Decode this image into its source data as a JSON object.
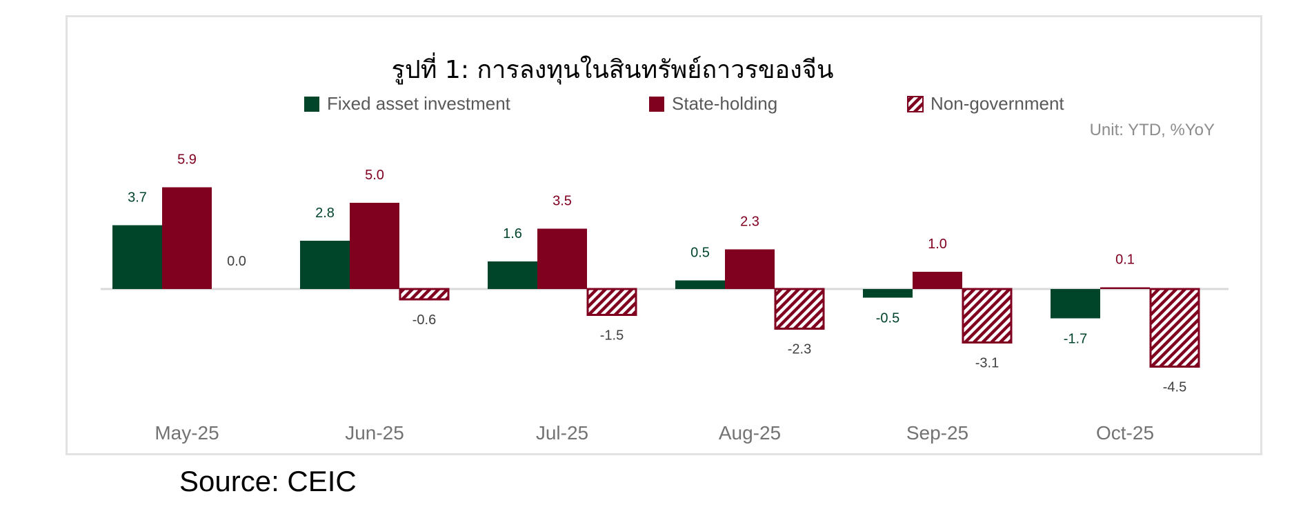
{
  "chart_data": {
    "type": "bar",
    "title": "รูปที่ 1: การลงทุนในสินทรัพย์ถาวรของจีน",
    "unit_note": "Unit: YTD, %YoY",
    "categories": [
      "May-25",
      "Jun-25",
      "Jul-25",
      "Aug-25",
      "Sep-25",
      "Oct-25"
    ],
    "series": [
      {
        "name": "Fixed asset investment",
        "color": "#00452a",
        "pattern": "solid",
        "values": [
          3.7,
          2.8,
          1.6,
          0.5,
          -0.5,
          -1.7
        ],
        "labels": [
          "3.7",
          "2.8",
          "1.6",
          "0.5",
          "-0.5",
          "-1.7"
        ]
      },
      {
        "name": "State-holding",
        "color": "#800020",
        "pattern": "solid",
        "values": [
          5.9,
          5.0,
          3.5,
          2.3,
          1.0,
          0.1
        ],
        "labels": [
          "5.9",
          "5.0",
          "3.5",
          "2.3",
          "1.0",
          "0.1"
        ]
      },
      {
        "name": "Non-government",
        "color": "#800020",
        "pattern": "hatched",
        "values": [
          0.0,
          -0.6,
          -1.5,
          -2.3,
          -3.1,
          -4.5
        ],
        "labels": [
          "0.0",
          "-0.6",
          "-1.5",
          "-2.3",
          "-3.1",
          "-4.5"
        ]
      }
    ],
    "ylim": [
      -5,
      7
    ],
    "grid": false,
    "legend_position": "top-center",
    "label_color_neutral": "#404040"
  },
  "source": "Source: CEIC"
}
